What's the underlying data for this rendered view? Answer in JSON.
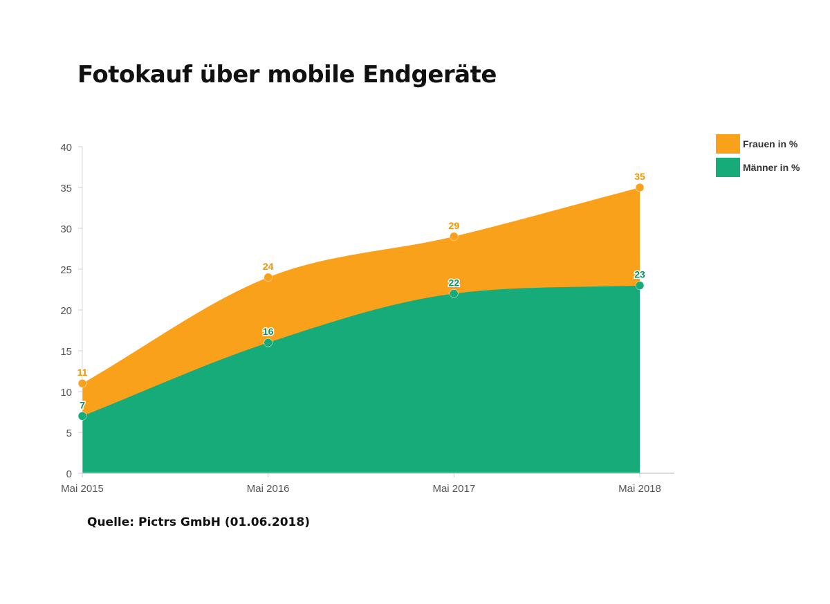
{
  "title": "Fotokauf über mobile Endgeräte",
  "source": "Quelle: Pictrs GmbH (01.06.2018)",
  "colors": {
    "frauen": "#f9a11b",
    "maenner": "#16ab79",
    "frauen_label": "#f39200",
    "maenner_label": "#0e8f62"
  },
  "chart_data": {
    "type": "area",
    "categories": [
      "Mai 2015",
      "Mai 2016",
      "Mai 2017",
      "Mai 2018"
    ],
    "series": [
      {
        "name": "Frauen in %",
        "values": [
          11,
          24,
          29,
          35
        ]
      },
      {
        "name": "Männer in %",
        "values": [
          7,
          16,
          22,
          23
        ]
      }
    ],
    "yticks": [
      0,
      5,
      10,
      15,
      20,
      25,
      30,
      35,
      40
    ],
    "ylim": [
      0,
      40
    ],
    "legend": "right",
    "grid": false
  }
}
